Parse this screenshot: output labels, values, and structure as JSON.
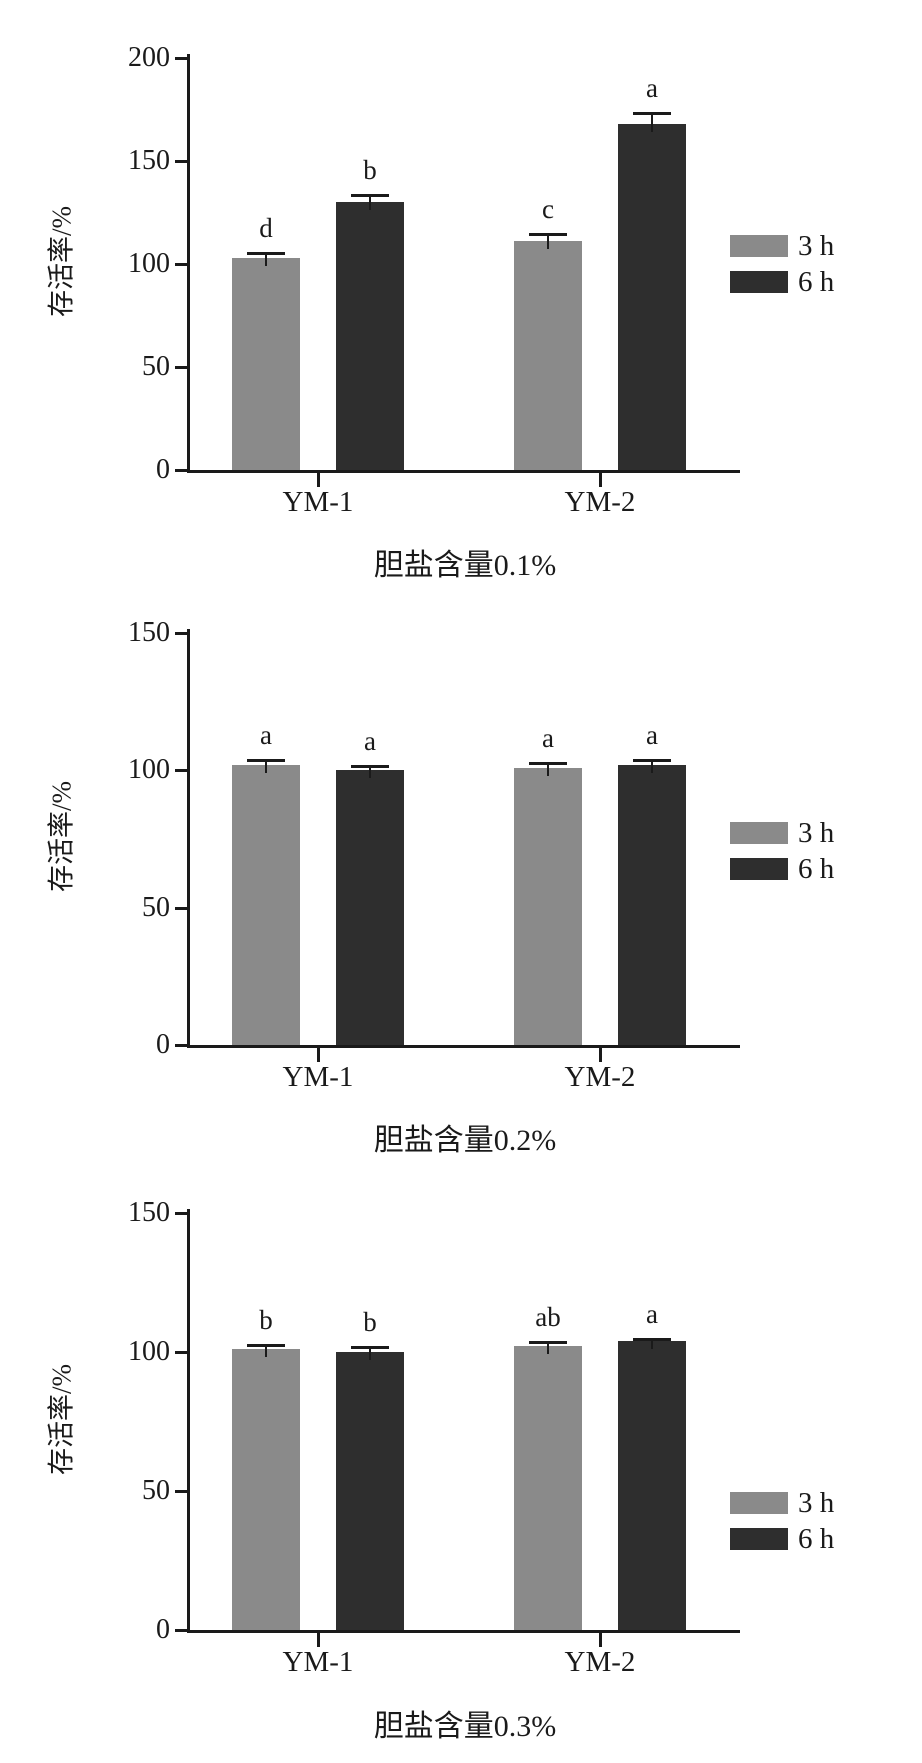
{
  "figure": {
    "background": "#ffffff",
    "axis_color": "#1a1a1a",
    "text_color": "#1a1a1a"
  },
  "chart_data": [
    {
      "type": "bar",
      "title": "胆盐含量0.1%",
      "ylabel": "存活率/%",
      "xlabel": "",
      "categories": [
        "YM-1",
        "YM-2"
      ],
      "series": [
        {
          "name": "3 h",
          "color": "#8a8a8a",
          "values": [
            103,
            111
          ],
          "errors": [
            3,
            4
          ],
          "letters": [
            "d",
            "c"
          ]
        },
        {
          "name": "6 h",
          "color": "#2e2e2e",
          "values": [
            130,
            168
          ],
          "errors": [
            4,
            6
          ],
          "letters": [
            "b",
            "a"
          ]
        }
      ],
      "ylim": [
        0,
        200
      ],
      "yticks": [
        0,
        50,
        100,
        150,
        200
      ],
      "grid": false,
      "legend_position": "right"
    },
    {
      "type": "bar",
      "title": "胆盐含量0.2%",
      "ylabel": "存活率/%",
      "xlabel": "",
      "categories": [
        "YM-1",
        "YM-2"
      ],
      "series": [
        {
          "name": "3 h",
          "color": "#8a8a8a",
          "values": [
            102,
            101
          ],
          "errors": [
            2,
            2
          ],
          "letters": [
            "a",
            "a"
          ]
        },
        {
          "name": "6 h",
          "color": "#2e2e2e",
          "values": [
            100,
            102
          ],
          "errors": [
            2,
            2
          ],
          "letters": [
            "a",
            "a"
          ]
        }
      ],
      "ylim": [
        0,
        150
      ],
      "yticks": [
        0,
        50,
        100,
        150
      ],
      "grid": false,
      "legend_position": "right"
    },
    {
      "type": "bar",
      "title": "胆盐含量0.3%",
      "ylabel": "存活率/%",
      "xlabel": "",
      "categories": [
        "YM-1",
        "YM-2"
      ],
      "series": [
        {
          "name": "3 h",
          "color": "#8a8a8a",
          "values": [
            101,
            102
          ],
          "errors": [
            2,
            2
          ],
          "letters": [
            "b",
            "ab"
          ]
        },
        {
          "name": "6 h",
          "color": "#2e2e2e",
          "values": [
            100,
            104
          ],
          "errors": [
            2,
            1
          ],
          "letters": [
            "b",
            "a"
          ]
        }
      ],
      "ylim": [
        0,
        150
      ],
      "yticks": [
        0,
        50,
        100,
        150
      ],
      "grid": false,
      "legend_position": "right"
    }
  ]
}
